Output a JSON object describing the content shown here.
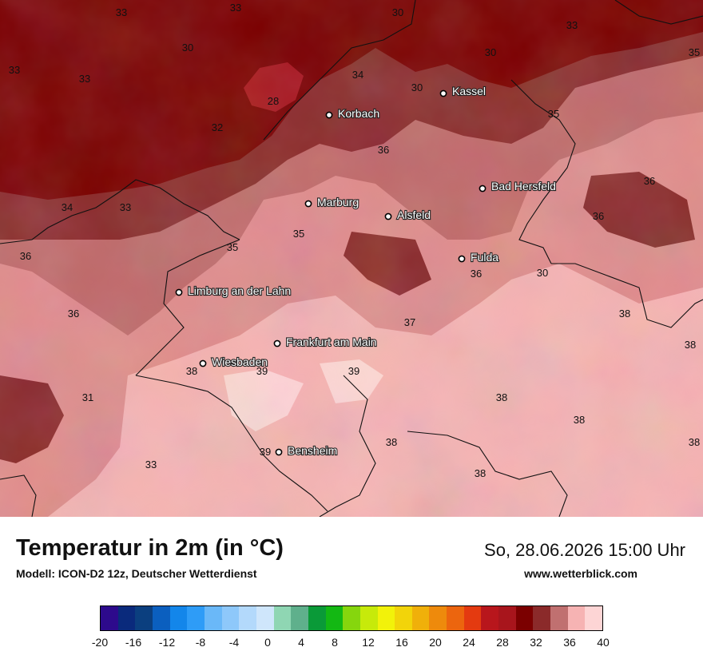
{
  "map": {
    "cities": [
      {
        "name": "Kassel",
        "key": "kassel"
      },
      {
        "name": "Korbach",
        "key": "korbach"
      },
      {
        "name": "Bad Hersfeld",
        "key": "bad-hersfeld"
      },
      {
        "name": "Marburg",
        "key": "marburg"
      },
      {
        "name": "Alsfeld",
        "key": "alsfeld"
      },
      {
        "name": "Fulda",
        "key": "fulda"
      },
      {
        "name": "Limburg an der Lahn",
        "key": "limburg"
      },
      {
        "name": "Frankfurt am Main",
        "key": "frankfurt"
      },
      {
        "name": "Wiesbaden",
        "key": "wiesbaden"
      },
      {
        "name": "Bensheim",
        "key": "bensheim"
      }
    ],
    "values": [
      "33",
      "33",
      "30",
      "33",
      "30",
      "33",
      "34",
      "30",
      "28",
      "32",
      "35",
      "36",
      "34",
      "33",
      "36",
      "35",
      "35",
      "36",
      "36",
      "36",
      "37",
      "38",
      "38",
      "39",
      "39",
      "38",
      "31",
      "38",
      "38",
      "38",
      "39",
      "33",
      "38",
      "38",
      "30"
    ],
    "colors": {
      "t28": "#a8151c",
      "t30": "#7b0000",
      "t32": "#8b2a2a",
      "t34": "#c06a6a",
      "t36": "#e89a9a",
      "t38": "#f6b3b3",
      "t40": "#fdd5d5"
    }
  },
  "footer": {
    "title": "Temperatur in 2m (in °C)",
    "model": "Modell: ICON-D2 12z, Deutscher Wetterdienst",
    "datetime": "So, 28.06.2026 15:00 Uhr",
    "website": "www.wetterblick.com"
  },
  "legend": {
    "colors": [
      "#2d0a8c",
      "#0a2a7c",
      "#0b3f7f",
      "#0b5fbf",
      "#1386ea",
      "#2e9cf7",
      "#6ab8f8",
      "#8ec8fa",
      "#b3d9fb",
      "#cfe6fb",
      "#8fd6b3",
      "#5fb08c",
      "#0a9a38",
      "#13b813",
      "#86d60d",
      "#c7ea0a",
      "#f2f20a",
      "#f2d40a",
      "#f0b00a",
      "#ee8a0c",
      "#ec650e",
      "#e43a10",
      "#b8161c",
      "#a8151c",
      "#7b0000",
      "#8b2a2a",
      "#c07070",
      "#f6b3b3",
      "#fdd5d5"
    ],
    "tick_labels": [
      "-20",
      "-16",
      "-12",
      "-8",
      "-4",
      "0",
      "4",
      "8",
      "12",
      "16",
      "20",
      "24",
      "28",
      "32",
      "36",
      "40"
    ]
  }
}
